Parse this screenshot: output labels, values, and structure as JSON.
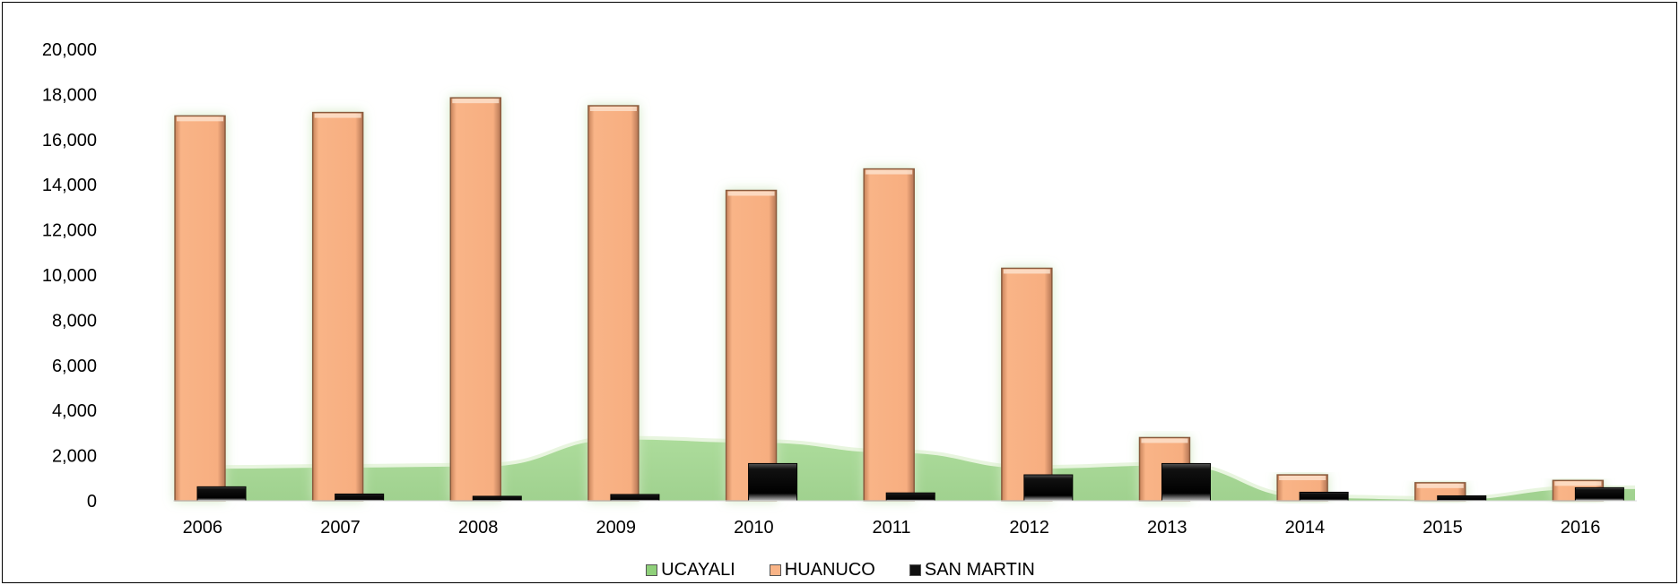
{
  "chart_data": {
    "type": "bar",
    "title": "",
    "xlabel": "",
    "ylabel": "",
    "ylim": [
      0,
      20000
    ],
    "yticks": [
      "0",
      "2,000",
      "4,000",
      "6,000",
      "8,000",
      "10,000",
      "12,000",
      "14,000",
      "16,000",
      "18,000",
      "20,000"
    ],
    "categories": [
      "2006",
      "2007",
      "2008",
      "2009",
      "2010",
      "2011",
      "2012",
      "2013",
      "2014",
      "2015",
      "2016"
    ],
    "series": [
      {
        "name": "UCAYALI",
        "chart_kind": "area",
        "color": "#8fd07a",
        "values": [
          1500,
          1550,
          1600,
          2800,
          2650,
          2200,
          1500,
          1650,
          200,
          120,
          600
        ]
      },
      {
        "name": "HUANUCO",
        "chart_kind": "bar",
        "color": "#f9b487",
        "values": [
          17050,
          17200,
          17850,
          17500,
          13750,
          14700,
          10300,
          2800,
          1150,
          800,
          900
        ]
      },
      {
        "name": "SAN MARTIN",
        "chart_kind": "bar",
        "color": "#111111",
        "values": [
          620,
          300,
          200,
          280,
          1650,
          350,
          1150,
          1650,
          380,
          220,
          580
        ]
      }
    ],
    "grid": false,
    "legend_position": "bottom"
  }
}
